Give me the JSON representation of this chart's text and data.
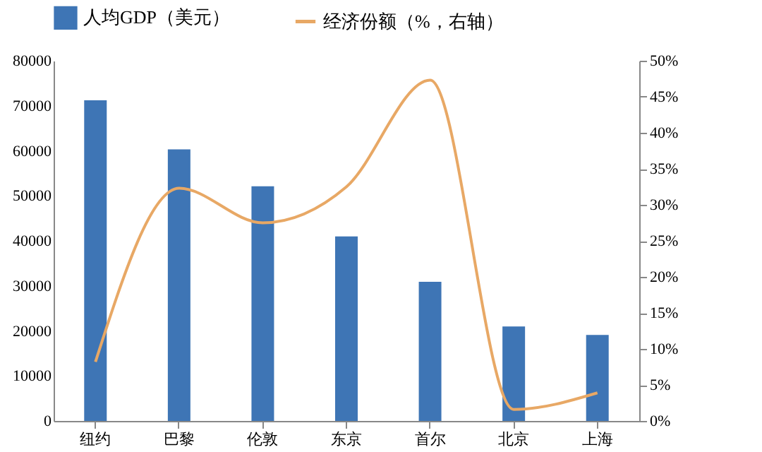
{
  "chart_data": {
    "type": "bar",
    "categories": [
      "纽约",
      "巴黎",
      "伦敦",
      "东京",
      "首尔",
      "北京",
      "上海"
    ],
    "series": [
      {
        "name": "人均GDP（美元）",
        "color": "#3e75b5",
        "values": [
          71200,
          60300,
          52100,
          41000,
          30900,
          21000,
          19100
        ]
      },
      {
        "name": "经济份额（%，右轴）",
        "type": "line",
        "axis": "y2",
        "color": "#e8a865",
        "values": [
          8.2,
          32.3,
          27.5,
          32.5,
          47.3,
          1.6,
          3.9
        ]
      }
    ],
    "ylim": [
      0,
      80000
    ],
    "yticks": [
      0,
      10000,
      20000,
      30000,
      40000,
      50000,
      60000,
      70000,
      80000
    ],
    "y2lim": [
      0,
      50
    ],
    "y2ticks": [
      {
        "value": 0,
        "label": "0%"
      },
      {
        "value": 5,
        "label": "5%"
      },
      {
        "value": 10,
        "label": "10%"
      },
      {
        "value": 15,
        "label": "15%"
      },
      {
        "value": 20,
        "label": "20%"
      },
      {
        "value": 25,
        "label": "25%"
      },
      {
        "value": 30,
        "label": "30%"
      },
      {
        "value": 35,
        "label": "35%"
      },
      {
        "value": 40,
        "label": "40%"
      },
      {
        "value": 45,
        "label": "45%"
      },
      {
        "value": 50,
        "label": "50%"
      }
    ],
    "legend": "top",
    "grid": false
  }
}
